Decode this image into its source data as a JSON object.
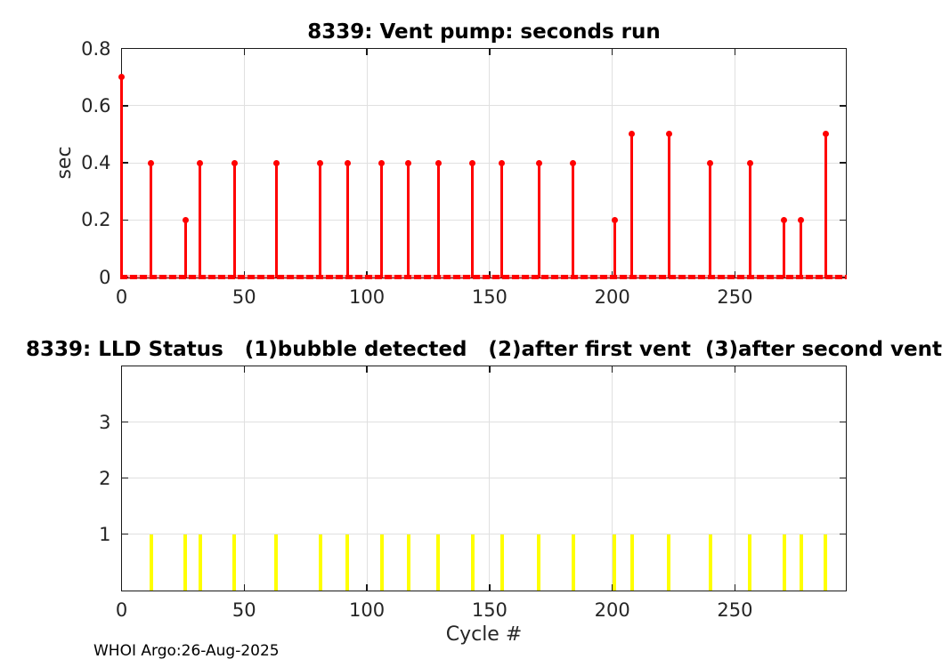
{
  "chart_data": [
    {
      "type": "stem",
      "title": "8339: Vent pump: seconds run",
      "xlabel": "",
      "ylabel": "sec",
      "series_color": "#ff0000",
      "grid": true,
      "xlim": [
        0,
        295
      ],
      "ylim": [
        0,
        0.8
      ],
      "xticks": [
        0,
        50,
        100,
        150,
        200,
        250
      ],
      "yticks": [
        0,
        0.2,
        0.4,
        0.6,
        0.8
      ],
      "points": [
        [
          0,
          0.7
        ],
        [
          12,
          0.4
        ],
        [
          26,
          0.2
        ],
        [
          32,
          0.4
        ],
        [
          46,
          0.4
        ],
        [
          63,
          0.4
        ],
        [
          81,
          0.4
        ],
        [
          92,
          0.4
        ],
        [
          106,
          0.4
        ],
        [
          117,
          0.4
        ],
        [
          129,
          0.4
        ],
        [
          143,
          0.4
        ],
        [
          155,
          0.4
        ],
        [
          170,
          0.4
        ],
        [
          184,
          0.4
        ],
        [
          201,
          0.2
        ],
        [
          208,
          0.5
        ],
        [
          223,
          0.5
        ],
        [
          240,
          0.4
        ],
        [
          256,
          0.4
        ],
        [
          270,
          0.2
        ],
        [
          277,
          0.2
        ],
        [
          287,
          0.5
        ]
      ],
      "baseline": {
        "y": 0,
        "x_start": 0,
        "x_end": 295
      }
    },
    {
      "type": "bar",
      "title": "8339: LLD Status   (1)bubble detected   (2)after first vent  (3)after second vent",
      "xlabel": "Cycle #",
      "ylabel": "",
      "series_color": "#ffff00",
      "grid": true,
      "xlim": [
        0,
        295
      ],
      "ylim": [
        0,
        4
      ],
      "xticks": [
        0,
        50,
        100,
        150,
        200,
        250
      ],
      "yticks": [
        1,
        2,
        3
      ],
      "bar_x": [
        12,
        26,
        32,
        46,
        63,
        81,
        92,
        106,
        117,
        129,
        143,
        155,
        170,
        184,
        201,
        208,
        223,
        240,
        256,
        270,
        277,
        287
      ],
      "bar_height": 1
    }
  ],
  "footer": {
    "text": "WHOI Argo:26-Aug-2025"
  }
}
